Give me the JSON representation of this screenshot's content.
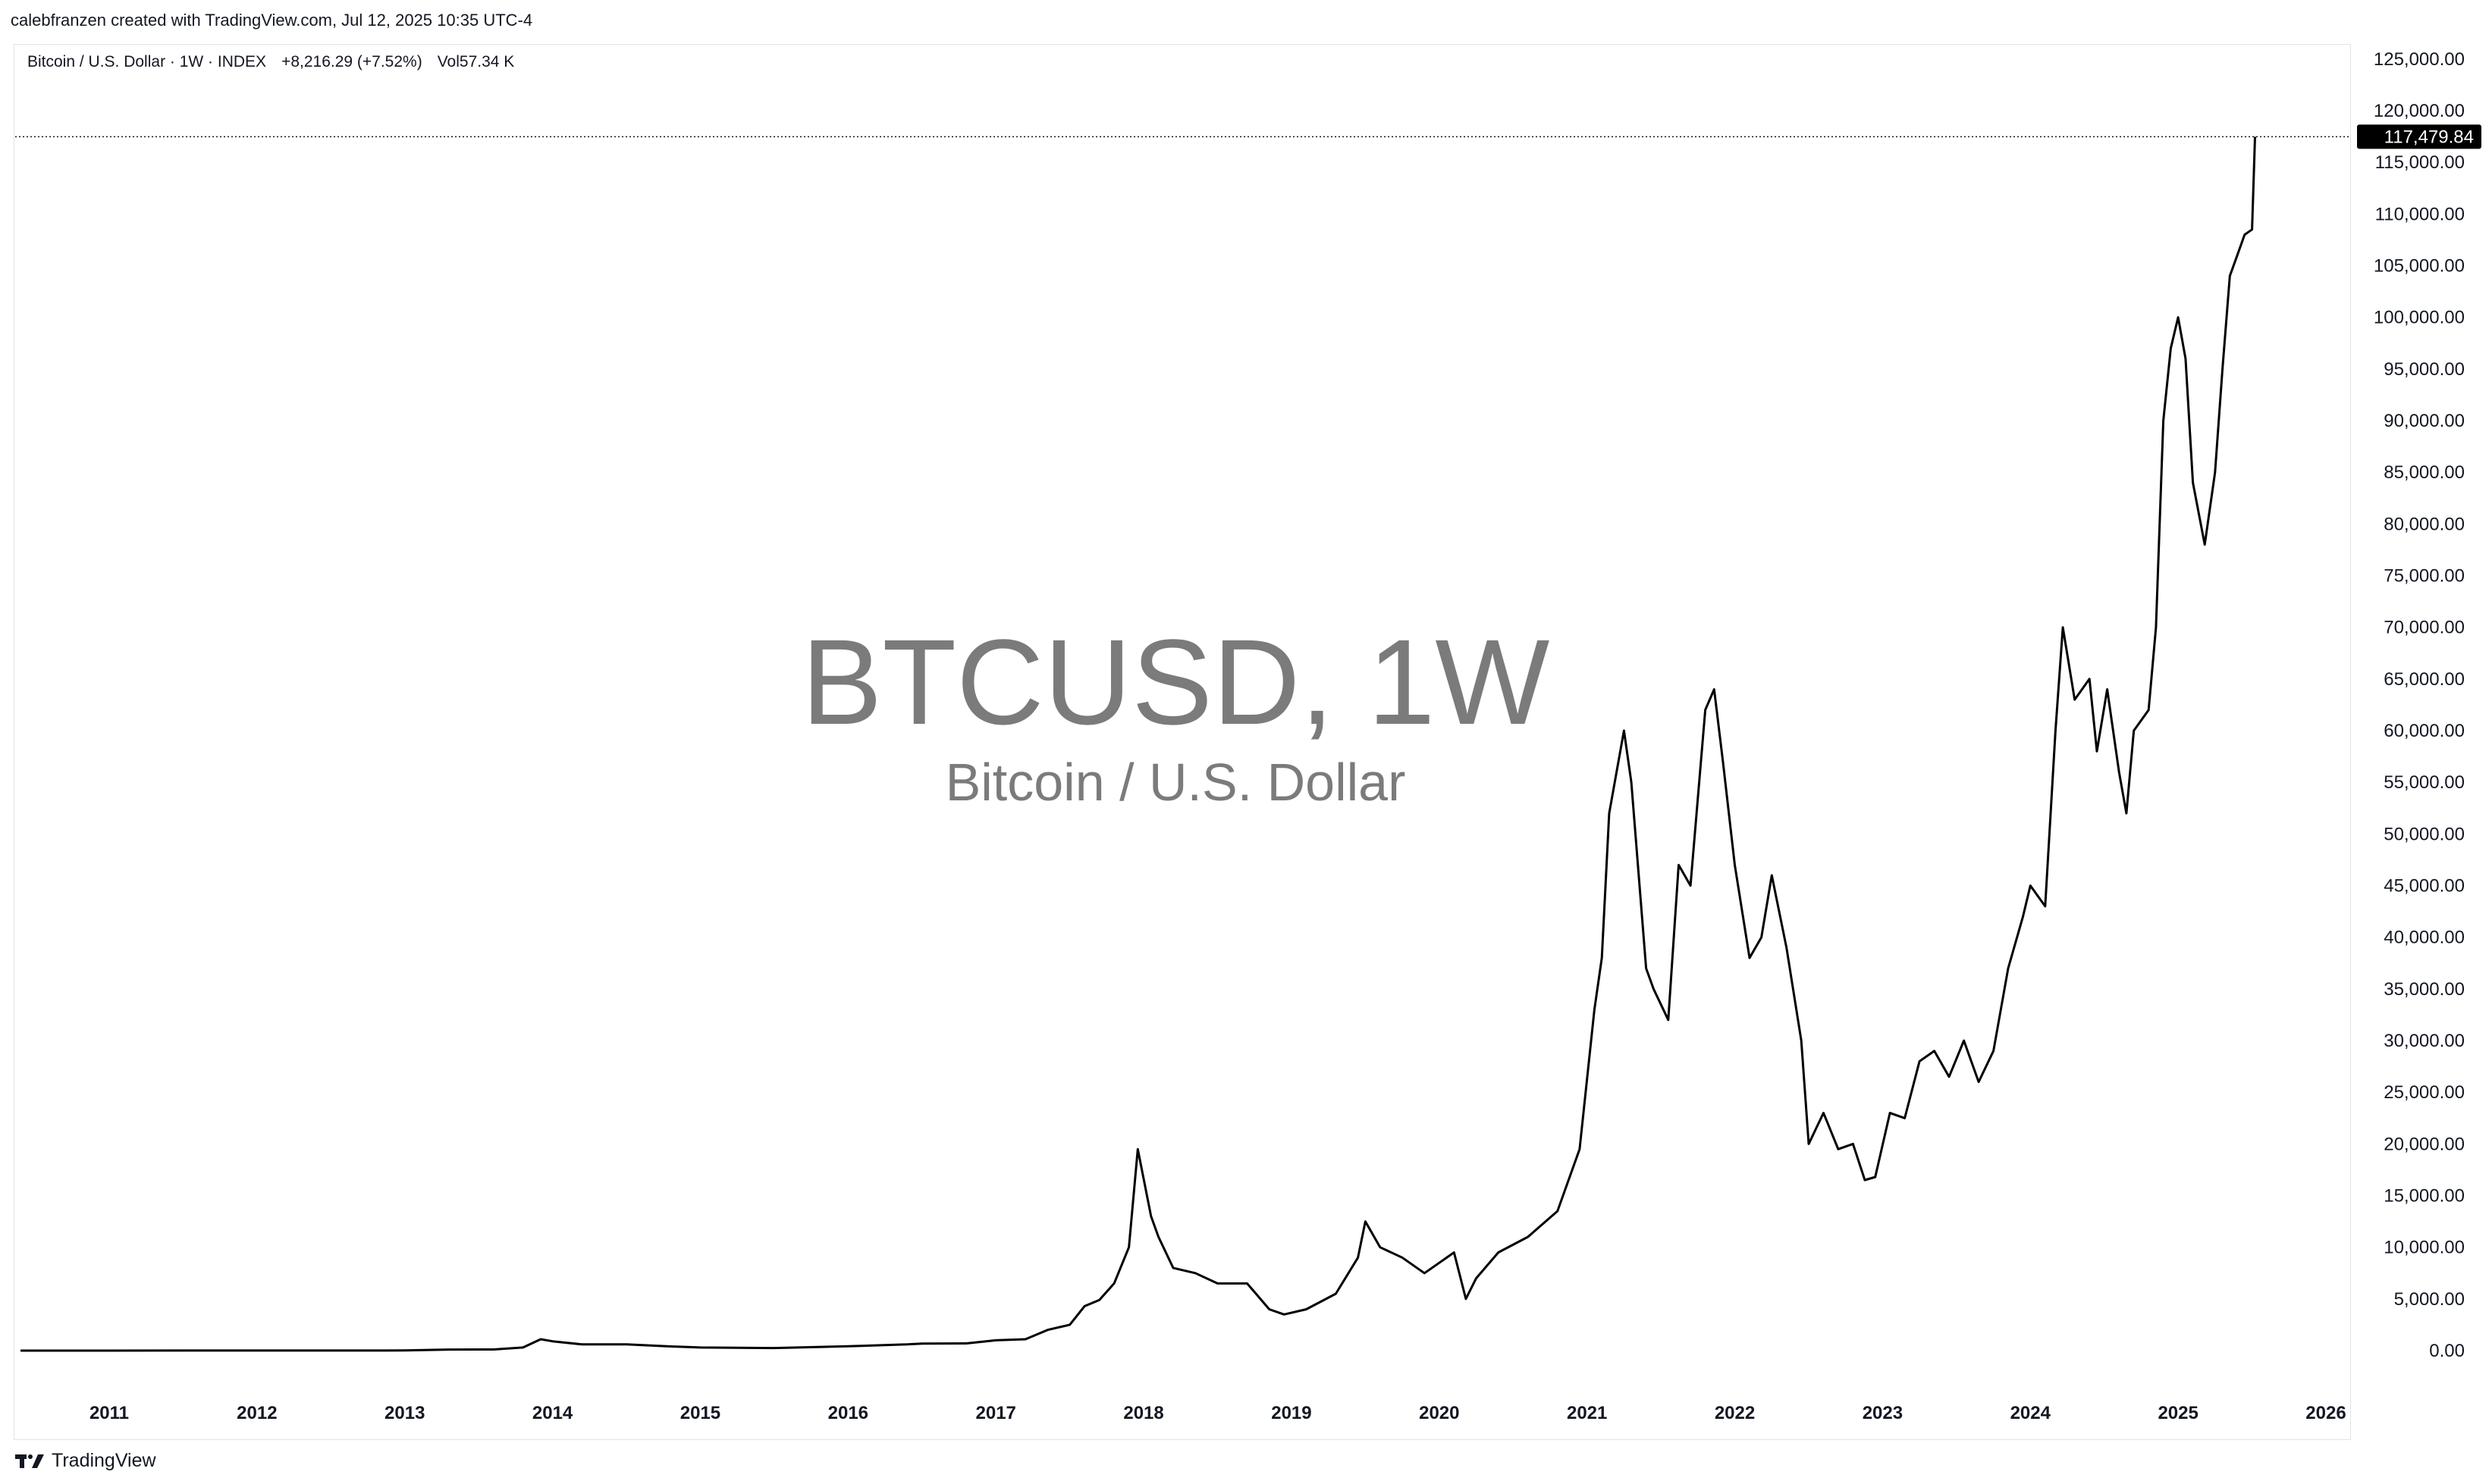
{
  "header": {
    "text": "calebfranzen created with TradingView.com, Jul 12, 2025 10:35 UTC-4"
  },
  "legend": {
    "symbol": "Bitcoin / U.S. Dollar · 1W · INDEX",
    "change": "+8,216.29 (+7.52%)",
    "volume": "Vol57.34 K"
  },
  "watermark": {
    "title": "BTCUSD, 1W",
    "subtitle": "Bitcoin / U.S. Dollar"
  },
  "footer": {
    "brand": "TradingView",
    "logo_icon": "tradingview-logo-icon"
  },
  "colors": {
    "line": "#000000",
    "price_tag_bg": "#000000",
    "watermark": "#7b7b7b"
  },
  "chart_data": {
    "type": "line",
    "title": "BTCUSD, 1W",
    "subtitle": "Bitcoin / U.S. Dollar",
    "last_price": 117479.84,
    "last_price_label": "117,479.84",
    "y_ticks": [
      0,
      5000,
      10000,
      15000,
      20000,
      25000,
      30000,
      35000,
      40000,
      45000,
      50000,
      55000,
      60000,
      65000,
      70000,
      75000,
      80000,
      85000,
      90000,
      95000,
      100000,
      105000,
      110000,
      115000,
      120000,
      125000
    ],
    "y_tick_labels": [
      "0.00",
      "5,000.00",
      "10,000.00",
      "15,000.00",
      "20,000.00",
      "25,000.00",
      "30,000.00",
      "35,000.00",
      "40,000.00",
      "45,000.00",
      "50,000.00",
      "55,000.00",
      "60,000.00",
      "65,000.00",
      "70,000.00",
      "75,000.00",
      "80,000.00",
      "85,000.00",
      "90,000.00",
      "95,000.00",
      "100,000.00",
      "105,000.00",
      "110,000.00",
      "115,000.00",
      "120,000.00",
      "125,000.00"
    ],
    "x_ticks": [
      2011,
      2012,
      2013,
      2014,
      2015,
      2016,
      2017,
      2018,
      2019,
      2020,
      2021,
      2022,
      2023,
      2024,
      2025,
      2026
    ],
    "ylim": [
      0,
      125000
    ],
    "xlim": [
      2010.4,
      2026.2
    ],
    "grid": false,
    "series": [
      {
        "x": [
          2010.4,
          2011.0,
          2011.5,
          2012.0,
          2012.5,
          2013.0,
          2013.3,
          2013.6,
          2013.8,
          2013.92,
          2014.0,
          2014.2,
          2014.5,
          2014.8,
          2015.0,
          2015.5,
          2016.0,
          2016.4,
          2016.5,
          2016.8,
          2017.0,
          2017.2,
          2017.35,
          2017.5,
          2017.6,
          2017.7,
          2017.8,
          2017.9,
          2017.96,
          2018.05,
          2018.1,
          2018.2,
          2018.35,
          2018.5,
          2018.7,
          2018.85,
          2018.95,
          2019.1,
          2019.3,
          2019.45,
          2019.5,
          2019.6,
          2019.75,
          2019.9,
          2020.1,
          2020.18,
          2020.25,
          2020.4,
          2020.6,
          2020.8,
          2020.95,
          2021.05,
          2021.1,
          2021.15,
          2021.25,
          2021.3,
          2021.4,
          2021.45,
          2021.55,
          2021.62,
          2021.7,
          2021.8,
          2021.86,
          2021.92,
          2022.0,
          2022.1,
          2022.18,
          2022.25,
          2022.35,
          2022.45,
          2022.5,
          2022.6,
          2022.7,
          2022.8,
          2022.88,
          2022.95,
          2023.05,
          2023.15,
          2023.25,
          2023.35,
          2023.45,
          2023.55,
          2023.65,
          2023.75,
          2023.85,
          2023.95,
          2024.0,
          2024.1,
          2024.17,
          2024.22,
          2024.3,
          2024.4,
          2024.45,
          2024.52,
          2024.6,
          2024.65,
          2024.7,
          2024.8,
          2024.85,
          2024.9,
          2024.95,
          2025.0,
          2025.05,
          2025.1,
          2025.18,
          2025.25,
          2025.3,
          2025.35,
          2025.4,
          2025.45,
          2025.5,
          2025.52
        ],
        "y": [
          0,
          1,
          10,
          5,
          8,
          13,
          100,
          110,
          300,
          1100,
          900,
          600,
          600,
          400,
          300,
          250,
          420,
          600,
          680,
          700,
          1000,
          1100,
          2000,
          2500,
          4300,
          4900,
          6500,
          10000,
          19500,
          13000,
          11000,
          8000,
          7500,
          6500,
          6500,
          4000,
          3500,
          4000,
          5500,
          9000,
          12500,
          10000,
          9000,
          7500,
          9500,
          5000,
          7000,
          9500,
          11000,
          13500,
          19500,
          33000,
          38000,
          52000,
          60000,
          55000,
          37000,
          35000,
          32000,
          47000,
          45000,
          62000,
          64000,
          57000,
          47000,
          38000,
          40000,
          46000,
          39000,
          30000,
          20000,
          23000,
          19500,
          20000,
          16500,
          16800,
          23000,
          22500,
          28000,
          29000,
          26500,
          30000,
          26000,
          29000,
          37000,
          42000,
          45000,
          43000,
          60000,
          70000,
          63000,
          65000,
          58000,
          64000,
          56000,
          52000,
          60000,
          62000,
          70000,
          90000,
          97000,
          100000,
          96000,
          84000,
          78000,
          85000,
          95000,
          104000,
          106000,
          108000,
          108500,
          117479.84
        ]
      }
    ]
  }
}
